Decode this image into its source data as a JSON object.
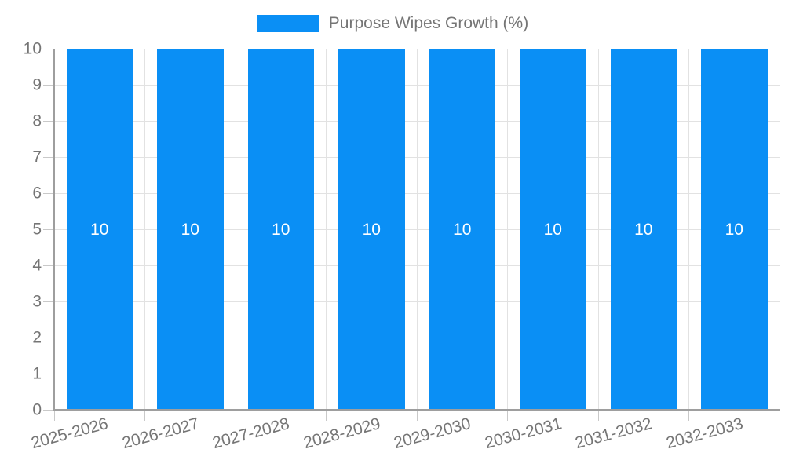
{
  "chart_data": {
    "type": "bar",
    "title": "Purpose Wipes Growth (%)",
    "categories": [
      "2025-2026",
      "2026-2027",
      "2027-2028",
      "2028-2029",
      "2029-2030",
      "2030-2031",
      "2031-2032",
      "2032-2033"
    ],
    "values": [
      10,
      10,
      10,
      10,
      10,
      10,
      10,
      10
    ],
    "bar_value_labels": [
      "10",
      "10",
      "10",
      "10",
      "10",
      "10",
      "10",
      "10"
    ],
    "series": [
      {
        "name": "Purpose Wipes Growth (%)",
        "values": [
          10,
          10,
          10,
          10,
          10,
          10,
          10,
          10
        ]
      }
    ],
    "xlabel": "",
    "ylabel": "",
    "ylim": [
      0,
      10
    ],
    "yticks": [
      0,
      1,
      2,
      3,
      4,
      5,
      6,
      7,
      8,
      9,
      10
    ],
    "grid": true,
    "legend_position": "top-center",
    "x_label_rotation_deg": -15,
    "colors": {
      "bar": "#0a8ff5",
      "bar_label_text": "#ffffff",
      "axis_text": "#757575",
      "legend_text": "#757575",
      "grid_line": "#e2e2e2",
      "tick_line": "#c9c9c9",
      "axis_line": "#9e9e9e",
      "background": "#ffffff"
    }
  }
}
